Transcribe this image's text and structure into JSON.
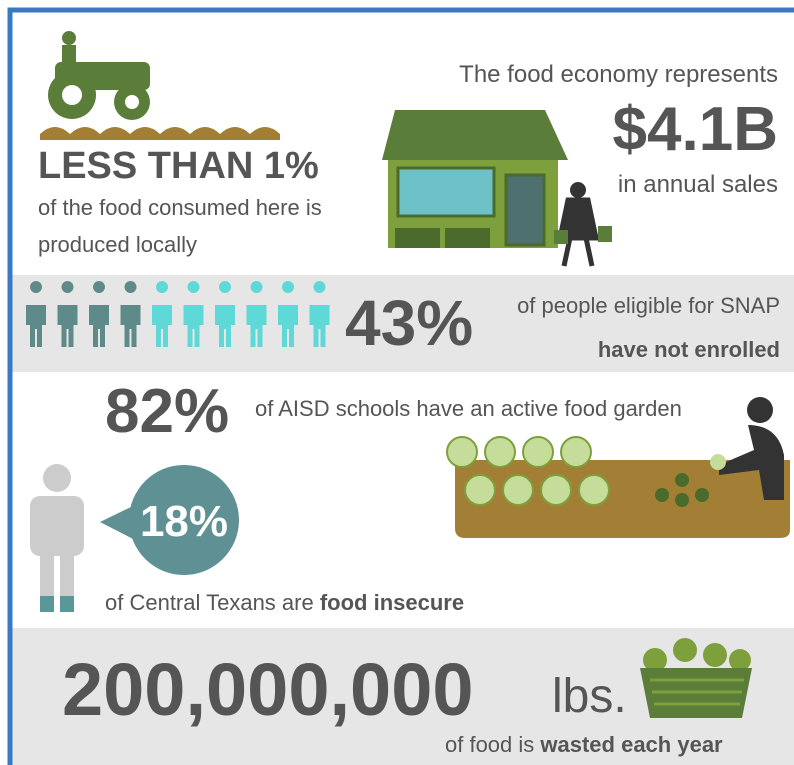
{
  "farming": {
    "headline": "LESS THAN 1%",
    "line1": "of the food consumed here is",
    "line2": "produced locally"
  },
  "economy": {
    "intro": "The food economy represents",
    "figure": "$4.1B",
    "outro": "in annual sales"
  },
  "snap": {
    "figure": "43%",
    "line1": "of people eligible for SNAP",
    "line2": "have not enrolled"
  },
  "gardens": {
    "figure": "82%",
    "text": "of AISD schools have an active food garden"
  },
  "insecurity": {
    "figure": "18%",
    "text": "of Central Texans are ",
    "bold": "food insecure"
  },
  "waste": {
    "figure": "200,000,000",
    "unit": "lbs.",
    "text": "of food is ",
    "bold": "wasted each year"
  }
}
